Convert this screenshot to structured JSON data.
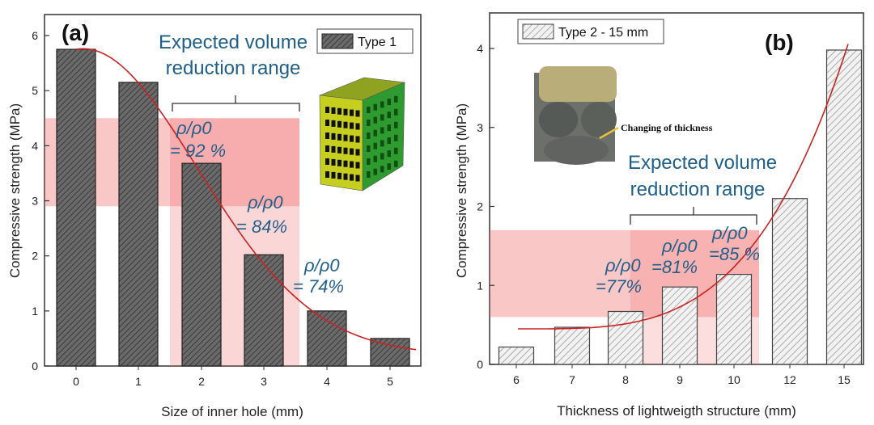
{
  "chart_data": [
    {
      "type": "bar",
      "panel_label": "(a)",
      "xlabel": "Size of inner hole (mm)",
      "ylabel": "Compressive strength (MPa)",
      "ylim": [
        0,
        6
      ],
      "yticks": [
        "0",
        "1",
        "2",
        "3",
        "4",
        "5",
        "6"
      ],
      "categories": [
        "0",
        "1",
        "2",
        "3",
        "4",
        "5"
      ],
      "series": [
        {
          "name": "Type 1",
          "values": [
            5.75,
            5.15,
            3.68,
            2.02,
            1.0,
            0.5
          ]
        }
      ],
      "bar_color": "#5a5a5a",
      "annotation": [
        "Expected volume",
        "reduction range"
      ],
      "ratios": [
        {
          "line1": "ρ/ρ0",
          "line2": "= 92 %",
          "category": "2"
        },
        {
          "line1": "ρ/ρ0",
          "line2": "= 84%",
          "category": "3"
        },
        {
          "line1": "ρ/ρ0",
          "line2": "= 74%",
          "category": "4"
        }
      ],
      "highlight": {
        "x_from": "2",
        "x_to": "3",
        "y_from": 2.9,
        "y_to": 4.5
      }
    },
    {
      "type": "bar",
      "panel_label": "(b)",
      "xlabel": "Thickness of lightweigth structure (mm)",
      "ylabel": "Compressive strength (MPa)",
      "ylim": [
        0,
        4.3
      ],
      "yticks": [
        "0",
        "1",
        "2",
        "3",
        "4"
      ],
      "categories": [
        "6",
        "7",
        "8",
        "9",
        "10",
        "12",
        "15"
      ],
      "series": [
        {
          "name": "Type 2 - 15 mm",
          "values": [
            0.22,
            0.47,
            0.67,
            0.98,
            1.14,
            2.1,
            3.98
          ]
        }
      ],
      "bar_color": "#d9d9d9",
      "annotation": [
        "Expected volume",
        "reduction range"
      ],
      "ratios": [
        {
          "line1": "ρ/ρ0",
          "line2": "=77%",
          "category": "8"
        },
        {
          "line1": "ρ/ρ0",
          "line2": "=81%",
          "category": "9"
        },
        {
          "line1": "ρ/ρ0",
          "line2": "=85 %",
          "category": "10"
        }
      ],
      "inset_caption": "Changing of thickness",
      "highlight": {
        "x_from": "8",
        "x_to": "10",
        "y_from": 0.6,
        "y_to": 1.7
      }
    }
  ]
}
